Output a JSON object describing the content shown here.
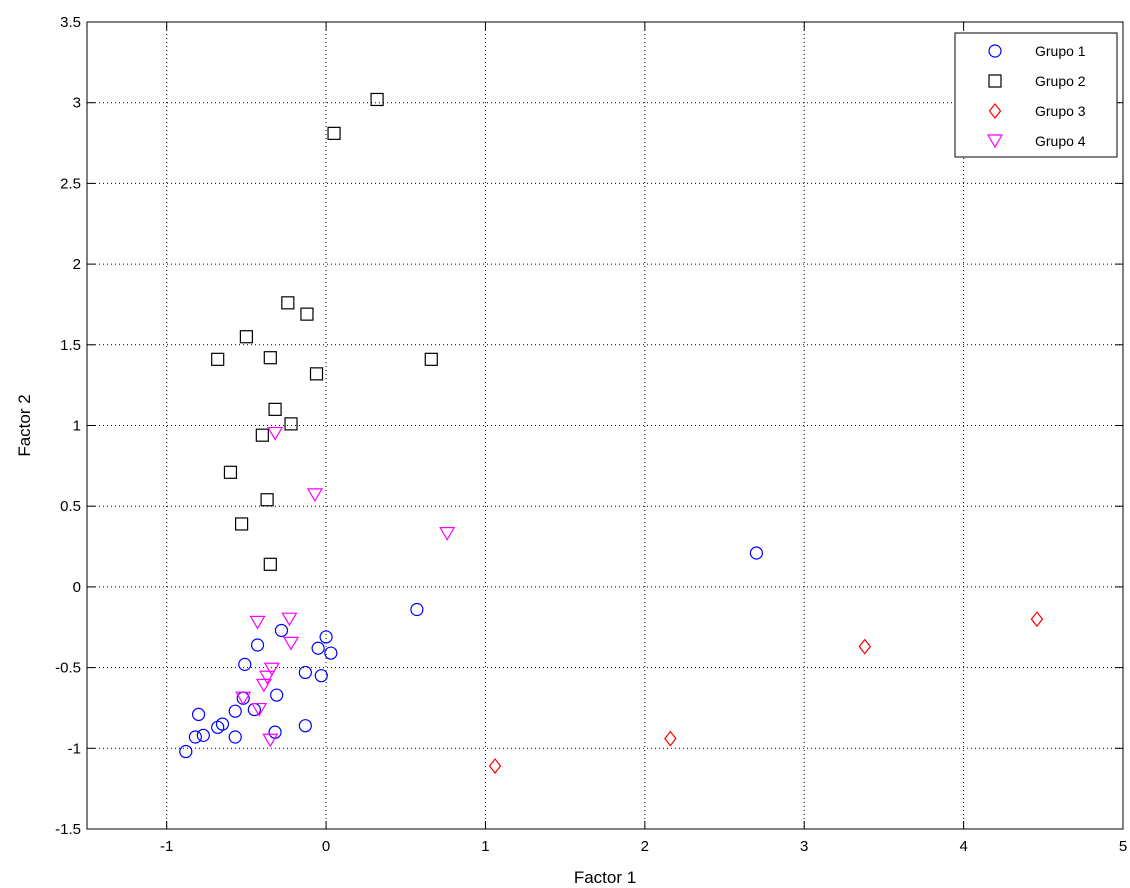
{
  "chart_data": {
    "type": "scatter",
    "title": "",
    "xlabel": "Factor 1",
    "ylabel": "Factor 2",
    "xlim": [
      -1.5,
      5
    ],
    "ylim": [
      -1.5,
      3.5
    ],
    "xticks": [
      -1,
      0,
      1,
      2,
      3,
      4,
      5
    ],
    "yticks": [
      -1.5,
      -1,
      -0.5,
      0,
      0.5,
      1,
      1.5,
      2,
      2.5,
      3,
      3.5
    ],
    "grid": true,
    "legend_position": "top-right",
    "series": [
      {
        "name": "Grupo 1",
        "marker": "circle",
        "color": "#0000ff",
        "points": [
          [
            -0.88,
            -1.02
          ],
          [
            -0.82,
            -0.93
          ],
          [
            -0.77,
            -0.92
          ],
          [
            -0.8,
            -0.79
          ],
          [
            -0.68,
            -0.87
          ],
          [
            -0.65,
            -0.85
          ],
          [
            -0.57,
            -0.93
          ],
          [
            -0.57,
            -0.77
          ],
          [
            -0.52,
            -0.69
          ],
          [
            -0.51,
            -0.48
          ],
          [
            -0.45,
            -0.76
          ],
          [
            -0.43,
            -0.36
          ],
          [
            -0.32,
            -0.9
          ],
          [
            -0.31,
            -0.67
          ],
          [
            -0.28,
            -0.27
          ],
          [
            -0.13,
            -0.86
          ],
          [
            -0.13,
            -0.53
          ],
          [
            -0.05,
            -0.38
          ],
          [
            -0.03,
            -0.55
          ],
          [
            0.0,
            -0.31
          ],
          [
            0.03,
            -0.41
          ],
          [
            0.57,
            -0.14
          ],
          [
            2.7,
            0.21
          ]
        ]
      },
      {
        "name": "Grupo 2",
        "marker": "square",
        "color": "#000000",
        "points": [
          [
            0.32,
            3.02
          ],
          [
            0.05,
            2.81
          ],
          [
            -0.24,
            1.76
          ],
          [
            -0.12,
            1.69
          ],
          [
            -0.5,
            1.55
          ],
          [
            -0.68,
            1.41
          ],
          [
            -0.35,
            1.42
          ],
          [
            0.66,
            1.41
          ],
          [
            -0.06,
            1.32
          ],
          [
            -0.32,
            1.1
          ],
          [
            -0.22,
            1.01
          ],
          [
            -0.4,
            0.94
          ],
          [
            -0.6,
            0.71
          ],
          [
            -0.37,
            0.54
          ],
          [
            -0.53,
            0.39
          ],
          [
            -0.35,
            0.14
          ]
        ]
      },
      {
        "name": "Grupo 3",
        "marker": "diamond",
        "color": "#ff0000",
        "points": [
          [
            1.06,
            -1.11
          ],
          [
            2.16,
            -0.94
          ],
          [
            3.38,
            -0.37
          ],
          [
            4.46,
            -0.2
          ]
        ]
      },
      {
        "name": "Grupo 4",
        "marker": "triangle-down",
        "color": "#ff00ff",
        "points": [
          [
            -0.32,
            0.95
          ],
          [
            -0.07,
            0.57
          ],
          [
            0.76,
            0.33
          ],
          [
            -0.43,
            -0.22
          ],
          [
            -0.23,
            -0.2
          ],
          [
            -0.22,
            -0.35
          ],
          [
            -0.34,
            -0.51
          ],
          [
            -0.37,
            -0.56
          ],
          [
            -0.39,
            -0.61
          ],
          [
            -0.52,
            -0.69
          ],
          [
            -0.42,
            -0.76
          ],
          [
            -0.35,
            -0.95
          ]
        ]
      }
    ]
  }
}
